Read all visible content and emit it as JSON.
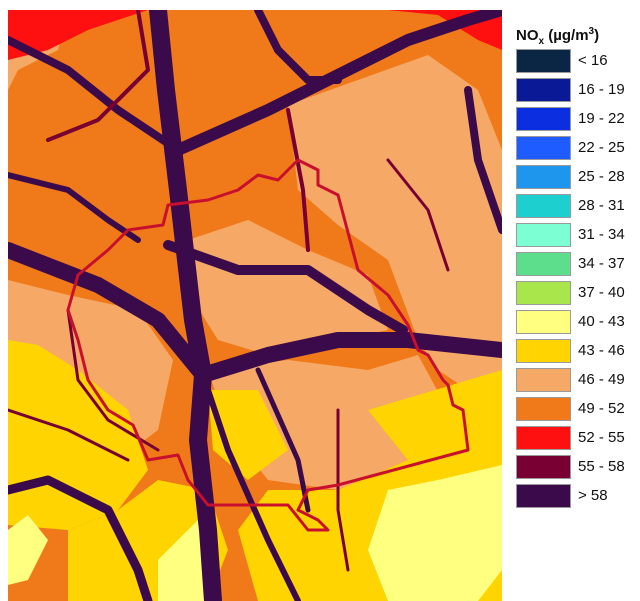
{
  "legend": {
    "title_main": "NO",
    "title_sub": "x",
    "title_unit": " (µg/m",
    "title_sup": "3",
    "title_close": ")",
    "classes": [
      {
        "label": "< 16",
        "color": "#0b2545"
      },
      {
        "label": "16 - 19",
        "color": "#0a1a96"
      },
      {
        "label": "19 - 22",
        "color": "#0a2ee0"
      },
      {
        "label": "22 - 25",
        "color": "#1e5cff"
      },
      {
        "label": "25 - 28",
        "color": "#1e96ee"
      },
      {
        "label": "28 - 31",
        "color": "#1ecfd0"
      },
      {
        "label": "31 - 34",
        "color": "#7cffd2"
      },
      {
        "label": "34 - 37",
        "color": "#5cde8c"
      },
      {
        "label": "37 - 40",
        "color": "#a8e64c"
      },
      {
        "label": "40 - 43",
        "color": "#ffff80"
      },
      {
        "label": "43 - 46",
        "color": "#ffd400"
      },
      {
        "label": "46 - 49",
        "color": "#f6a866"
      },
      {
        "label": "49 - 52",
        "color": "#f07a1a"
      },
      {
        "label": "52 - 55",
        "color": "#ff1010"
      },
      {
        "label": "55 - 58",
        "color": "#780033"
      },
      {
        "label": "> 58",
        "color": "#3a0a4a"
      }
    ]
  },
  "map": {
    "zone_colors": {
      "very_high": "#3a0a4a",
      "high": "#780033",
      "elevated": "#ff1010",
      "upper": "#f07a1a",
      "mid": "#f6a866",
      "moderate": "#ffd400",
      "low": "#ffff80"
    },
    "boundary_color": "#c8102e"
  }
}
